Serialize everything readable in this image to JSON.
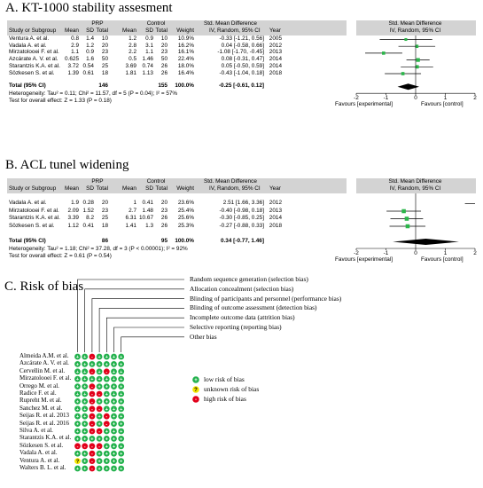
{
  "panelA": {
    "title": "A. KT-1000 stability assesment",
    "headers": {
      "prp": "PRP",
      "control": "Control",
      "smd": "Std. Mean Difference",
      "smd2": "Std. Mean Difference",
      "study": "Study or Subgroup",
      "mean": "Mean",
      "sd": "SD",
      "total": "Total",
      "weight": "Weight",
      "method": "IV, Random, 95% CI",
      "year": "Year",
      "method2": "IV, Random, 95% CI"
    },
    "rows": [
      {
        "study": "Ventura A. et al.",
        "m1": "0.8",
        "sd1": "1.4",
        "n1": "10",
        "m2": "1.2",
        "sd2": "0.9",
        "n2": "10",
        "w": "10.9%",
        "ci": "-0.33 [-1.21, 0.56]",
        "year": "2005",
        "est": -0.33,
        "lo": -1.21,
        "hi": 0.56,
        "wt": 10.9
      },
      {
        "study": "Vadala A. et al.",
        "m1": "2.9",
        "sd1": "1.2",
        "n1": "20",
        "m2": "2.8",
        "sd2": "3.1",
        "n2": "20",
        "w": "16.2%",
        "ci": "0.04 [-0.58, 0.66]",
        "year": "2012",
        "est": 0.04,
        "lo": -0.58,
        "hi": 0.66,
        "wt": 16.2
      },
      {
        "study": "Mirzatolooei F. et al.",
        "m1": "1.1",
        "sd1": "0.9",
        "n1": "23",
        "m2": "2.2",
        "sd2": "1.1",
        "n2": "23",
        "w": "16.1%",
        "ci": "-1.08 [-1.70, -0.45]",
        "year": "2013",
        "est": -1.08,
        "lo": -1.7,
        "hi": -0.45,
        "wt": 16.1
      },
      {
        "study": "Azcárate A. V. et al.",
        "m1": "0.625",
        "sd1": "1.6",
        "n1": "50",
        "m2": "0.5",
        "sd2": "1.46",
        "n2": "50",
        "w": "22.4%",
        "ci": "0.08 [-0.31, 0.47]",
        "year": "2014",
        "est": 0.08,
        "lo": -0.31,
        "hi": 0.47,
        "wt": 22.4
      },
      {
        "study": "Starantzis K.A. et al.",
        "m1": "3.72",
        "sd1": "0.54",
        "n1": "25",
        "m2": "3.69",
        "sd2": "0.74",
        "n2": "26",
        "w": "18.0%",
        "ci": "0.05 [-0.50, 0.59]",
        "year": "2014",
        "est": 0.05,
        "lo": -0.5,
        "hi": 0.59,
        "wt": 18.0
      },
      {
        "study": "Sözkesen S. et al.",
        "m1": "1.39",
        "sd1": "0.61",
        "n1": "18",
        "m2": "1.81",
        "sd2": "1.13",
        "n2": "26",
        "w": "16.4%",
        "ci": "-0.43 [-1.04, 0.18]",
        "year": "2018",
        "est": -0.43,
        "lo": -1.04,
        "hi": 0.18,
        "wt": 16.4
      }
    ],
    "total": {
      "label": "Total (95% CI)",
      "n1": "146",
      "n2": "155",
      "w": "100.0%",
      "ci": "-0.25 [-0.61, 0.12]",
      "est": -0.25,
      "lo": -0.61,
      "hi": 0.12
    },
    "heterogeneity": "Heterogeneity: Tau² = 0.11; Chi² = 11.57, df = 5 (P = 0.04); I² = 57%",
    "overall": "Test for overall effect: Z = 1.33 (P = 0.18)",
    "axis": {
      "min": -2,
      "max": 2,
      "ticks": [
        "-2",
        "-1",
        "0",
        "1",
        "2"
      ],
      "left": "Favours [experimental]",
      "right": "Favours [control]"
    }
  },
  "panelB": {
    "title": "B. ACL tunel widening",
    "headers": {
      "prp": "PRP",
      "control": "Control",
      "smd": "Std. Mean Difference",
      "smd2": "Std. Mean Difference",
      "study": "Study or Subgroup",
      "mean": "Mean",
      "sd": "SD",
      "total": "Total",
      "weight": "Weight",
      "method": "IV, Random, 95% CI",
      "year": "Year",
      "method2": "IV, Random, 95% CI"
    },
    "rows": [
      {
        "study": "Vadala A. et al.",
        "m1": "1.9",
        "sd1": "0.28",
        "n1": "20",
        "m2": "1",
        "sd2": "0.41",
        "n2": "20",
        "w": "23.6%",
        "ci": "2.51 [1.66, 3.36]",
        "year": "2012",
        "est": 2.51,
        "lo": 1.66,
        "hi": 3.36,
        "wt": 23.6
      },
      {
        "study": "Mirzatolooei F. et al.",
        "m1": "2.09",
        "sd1": "1.52",
        "n1": "23",
        "m2": "2.7",
        "sd2": "1.48",
        "n2": "23",
        "w": "25.4%",
        "ci": "-0.40 [-0.98, 0.18]",
        "year": "2013",
        "est": -0.4,
        "lo": -0.98,
        "hi": 0.18,
        "wt": 25.4
      },
      {
        "study": "Starantzis K.A. et al.",
        "m1": "3.39",
        "sd1": "8.2",
        "n1": "25",
        "m2": "6.31",
        "sd2": "10.67",
        "n2": "26",
        "w": "25.6%",
        "ci": "-0.30 [-0.85, 0.25]",
        "year": "2014",
        "est": -0.3,
        "lo": -0.85,
        "hi": 0.25,
        "wt": 25.6
      },
      {
        "study": "Sözkesen S. et al.",
        "m1": "1.12",
        "sd1": "0.41",
        "n1": "18",
        "m2": "1.41",
        "sd2": "1.3",
        "n2": "26",
        "w": "25.3%",
        "ci": "-0.27 [-0.88, 0.33]",
        "year": "2018",
        "est": -0.27,
        "lo": -0.88,
        "hi": 0.33,
        "wt": 25.3
      }
    ],
    "total": {
      "label": "Total (95% CI)",
      "n1": "86",
      "n2": "95",
      "w": "100.0%",
      "ci": "0.34 [-0.77, 1.46]",
      "est": 0.34,
      "lo": -0.77,
      "hi": 1.46
    },
    "heterogeneity": "Heterogeneity: Tau² = 1.18; Chi² = 37.28, df = 3 (P < 0.00001); I² = 92%",
    "overall": "Test for overall effect: Z = 0.61 (P = 0.54)",
    "axis": {
      "min": -2,
      "max": 2,
      "ticks": [
        "-2",
        "-1",
        "0",
        "1",
        "2"
      ],
      "left": "Favours [experimental]",
      "right": "Favours [control]"
    }
  },
  "panelC": {
    "title": "C. Risk of bias",
    "domains": [
      "Random sequence generation (selection bias)",
      "Allocation concealment (selection bias)",
      "Blinding of participants and personnel (performance bias)",
      "Blinding of outcome assessment (detection bias)",
      "Incomplete outcome data (attrition bias)",
      "Selective reporting (reporting bias)",
      "Other bias"
    ],
    "studies": [
      {
        "name": "Almeida A.M. et al.",
        "cells": [
          "low",
          "low",
          "high",
          "low",
          "low",
          "low",
          "low"
        ]
      },
      {
        "name": "Azcárate A. V. et al.",
        "cells": [
          "low",
          "low",
          "low",
          "low",
          "low",
          "low",
          "low"
        ]
      },
      {
        "name": "Cervellin M. et al.",
        "cells": [
          "low",
          "low",
          "high",
          "low",
          "high",
          "low",
          "low"
        ]
      },
      {
        "name": "Mirzatolooei F. et al.",
        "cells": [
          "low",
          "low",
          "low",
          "low",
          "low",
          "low",
          "low"
        ]
      },
      {
        "name": "Orrego M. et al.",
        "cells": [
          "low",
          "low",
          "high",
          "low",
          "low",
          "low",
          "low"
        ]
      },
      {
        "name": "Radice F. et al.",
        "cells": [
          "low",
          "low",
          "high",
          "high",
          "low",
          "low",
          "low"
        ]
      },
      {
        "name": "Rupreht M. et al.",
        "cells": [
          "low",
          "low",
          "high",
          "low",
          "low",
          "low",
          "low"
        ]
      },
      {
        "name": "Sanchez M. et al.",
        "cells": [
          "low",
          "low",
          "high",
          "high",
          "low",
          "low",
          "low"
        ]
      },
      {
        "name": "Seijas R. et al. 2013",
        "cells": [
          "low",
          "low",
          "high",
          "low",
          "high",
          "low",
          "low"
        ]
      },
      {
        "name": "Seijas R. et al. 2016",
        "cells": [
          "low",
          "low",
          "high",
          "low",
          "high",
          "low",
          "low"
        ]
      },
      {
        "name": "Silva A. et al.",
        "cells": [
          "low",
          "low",
          "high",
          "high",
          "low",
          "low",
          "low"
        ]
      },
      {
        "name": "Starantzis K.A. et al.",
        "cells": [
          "low",
          "low",
          "low",
          "low",
          "low",
          "low",
          "low"
        ]
      },
      {
        "name": "Sözkesen S. et al.",
        "cells": [
          "high",
          "high",
          "high",
          "high",
          "low",
          "low",
          "low"
        ]
      },
      {
        "name": "Vadala A. et al.",
        "cells": [
          "low",
          "low",
          "high",
          "low",
          "low",
          "low",
          "low"
        ]
      },
      {
        "name": "Ventura A. et al.",
        "cells": [
          "unclear",
          "low",
          "high",
          "low",
          "low",
          "low",
          "low"
        ]
      },
      {
        "name": "Walters B. L. et al.",
        "cells": [
          "low",
          "low",
          "high",
          "low",
          "low",
          "low",
          "low"
        ]
      }
    ],
    "legend": [
      {
        "key": "low",
        "symbol": "+",
        "label": "low risk of bias"
      },
      {
        "key": "unclear",
        "symbol": "?",
        "label": "unknown risk of bias"
      },
      {
        "key": "high",
        "symbol": "-",
        "label": "high risk of bias"
      }
    ],
    "colors": {
      "low": "#22b14c",
      "unclear": "#f2e500",
      "high": "#e2001a",
      "line": "#000000"
    }
  },
  "plot_colors": {
    "square": "#2bb64a",
    "ci": "#000000",
    "header_bg": "#d3d3d3"
  }
}
